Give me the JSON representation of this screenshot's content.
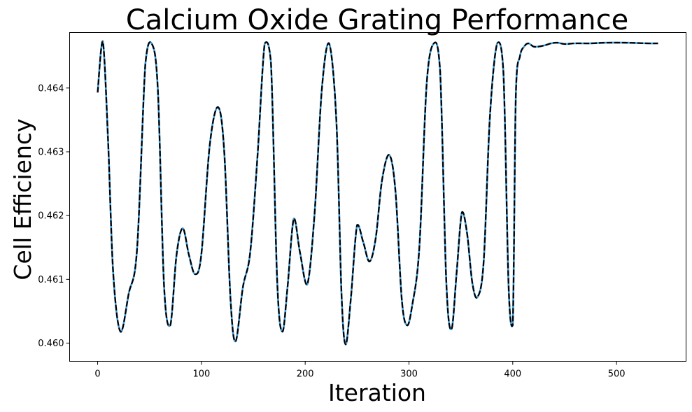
{
  "chart_data": {
    "type": "line",
    "title": "Calcium Oxide Grating Performance",
    "xlabel": "Iteration",
    "ylabel": "Cell Efficiency",
    "xlim": [
      -27,
      567
    ],
    "ylim": [
      0.459715,
      0.46487
    ],
    "xticks": [
      0,
      100,
      200,
      300,
      400,
      500
    ],
    "xtick_labels": [
      "0",
      "100",
      "200",
      "300",
      "400",
      "500"
    ],
    "yticks": [
      0.46,
      0.461,
      0.462,
      0.463,
      0.464
    ],
    "ytick_labels": [
      "0.460",
      "0.461",
      "0.462",
      "0.463",
      "0.464"
    ],
    "grid": false,
    "series": [
      {
        "style": "solid",
        "color": "#3a9ad9",
        "x": [
          0,
          5,
          10,
          15,
          22,
          30,
          38,
          46,
          52,
          58,
          64,
          70,
          76,
          82,
          88,
          94,
          100,
          108,
          116,
          122,
          128,
          133,
          140,
          147,
          154,
          161,
          167,
          173,
          178,
          183,
          189,
          195,
          202,
          209,
          216,
          223,
          230,
          235,
          239,
          244,
          250,
          256,
          262,
          268,
          274,
          281,
          287,
          293,
          298,
          303,
          310,
          317,
          324,
          330,
          336,
          341,
          346,
          351,
          356,
          361,
          366,
          372,
          378,
          385,
          391,
          396,
          400,
          403,
          407,
          411,
          415,
          420,
          425,
          431,
          437,
          443,
          450,
          460,
          475,
          490,
          510,
          530,
          540
        ],
        "y": [
          0.46393,
          0.46473,
          0.4632,
          0.4611,
          0.46018,
          0.46078,
          0.46148,
          0.46438,
          0.4647,
          0.46398,
          0.4609,
          0.46028,
          0.46138,
          0.4618,
          0.46138,
          0.46108,
          0.4614,
          0.4631,
          0.4637,
          0.463,
          0.4607,
          0.46003,
          0.46088,
          0.46142,
          0.46292,
          0.4647,
          0.4644,
          0.46098,
          0.46018,
          0.46088,
          0.46195,
          0.46142,
          0.46092,
          0.46202,
          0.46397,
          0.4647,
          0.4635,
          0.46077,
          0.45998,
          0.4607,
          0.46185,
          0.46158,
          0.46128,
          0.46165,
          0.46255,
          0.46295,
          0.46238,
          0.4607,
          0.46028,
          0.46058,
          0.4615,
          0.46405,
          0.4647,
          0.46427,
          0.46095,
          0.46022,
          0.46112,
          0.46205,
          0.46172,
          0.46095,
          0.46072,
          0.46128,
          0.46355,
          0.4647,
          0.46425,
          0.4609,
          0.46028,
          0.4639,
          0.4645,
          0.46465,
          0.4647,
          0.46465,
          0.46465,
          0.46467,
          0.4647,
          0.46471,
          0.46469,
          0.4647,
          0.4647,
          0.46471,
          0.46471,
          0.4647,
          0.4647
        ]
      },
      {
        "style": "dashed",
        "color": "#000000",
        "x": [
          0,
          5,
          10,
          15,
          22,
          30,
          38,
          46,
          52,
          58,
          64,
          70,
          76,
          82,
          88,
          94,
          100,
          108,
          116,
          122,
          128,
          133,
          140,
          147,
          154,
          161,
          167,
          173,
          178,
          183,
          189,
          195,
          202,
          209,
          216,
          223,
          230,
          235,
          239,
          244,
          250,
          256,
          262,
          268,
          274,
          281,
          287,
          293,
          298,
          303,
          310,
          317,
          324,
          330,
          336,
          341,
          346,
          351,
          356,
          361,
          366,
          372,
          378,
          385,
          391,
          396,
          400,
          403,
          407,
          411,
          415,
          420,
          425,
          431,
          437,
          443,
          450,
          460,
          475,
          490,
          510,
          530,
          540
        ],
        "y": [
          0.46393,
          0.46473,
          0.4632,
          0.4611,
          0.46018,
          0.46078,
          0.46148,
          0.46438,
          0.4647,
          0.46398,
          0.4609,
          0.46028,
          0.46138,
          0.4618,
          0.46138,
          0.46108,
          0.4614,
          0.4631,
          0.4637,
          0.463,
          0.4607,
          0.46003,
          0.46088,
          0.46142,
          0.46292,
          0.4647,
          0.4644,
          0.46098,
          0.46018,
          0.46088,
          0.46195,
          0.46142,
          0.46092,
          0.46202,
          0.46397,
          0.4647,
          0.4635,
          0.46077,
          0.45998,
          0.4607,
          0.46185,
          0.46158,
          0.46128,
          0.46165,
          0.46255,
          0.46295,
          0.46238,
          0.4607,
          0.46028,
          0.46058,
          0.4615,
          0.46405,
          0.4647,
          0.46427,
          0.46095,
          0.46022,
          0.46112,
          0.46205,
          0.46172,
          0.46095,
          0.46072,
          0.46128,
          0.46355,
          0.4647,
          0.46425,
          0.4609,
          0.46028,
          0.4639,
          0.4645,
          0.46465,
          0.4647,
          0.46465,
          0.46465,
          0.46467,
          0.4647,
          0.46471,
          0.46469,
          0.4647,
          0.4647,
          0.46471,
          0.46471,
          0.4647,
          0.4647
        ]
      }
    ]
  }
}
